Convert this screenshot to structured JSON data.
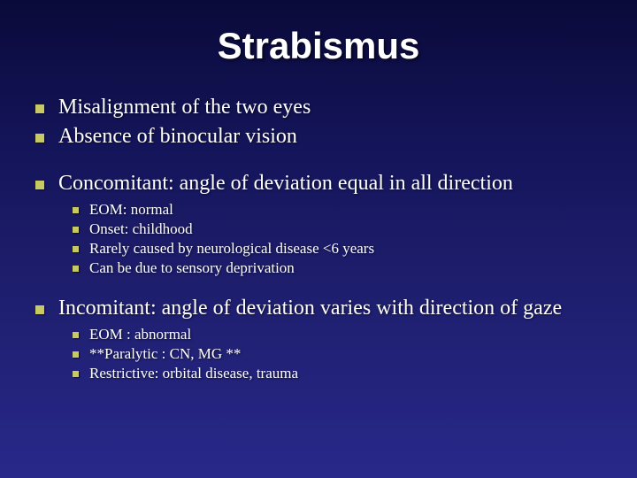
{
  "slide": {
    "title": "Strabismus",
    "title_fontsize": 42,
    "title_color": "#ffffff",
    "background_gradient": [
      "#0a0a3a",
      "#14145a",
      "#1e1e6e",
      "#28288a"
    ],
    "bullet_color": "#c8c864",
    "text_color": "#ffffff",
    "lvl1_fontsize": 24,
    "lvl2_fontsize": 17,
    "groups": [
      {
        "items": [
          {
            "text": "Misalignment of the two eyes"
          },
          {
            "text": "Absence of binocular vision"
          }
        ]
      },
      {
        "items": [
          {
            "text": "Concomitant: angle of deviation equal in all direction",
            "sub": [
              {
                "text": "EOM: normal"
              },
              {
                "text": "Onset: childhood"
              },
              {
                "text": "Rarely caused by neurological disease <6 years"
              },
              {
                "text": "Can be due to sensory deprivation"
              }
            ]
          }
        ]
      },
      {
        "items": [
          {
            "text": "Incomitant: angle of deviation varies with direction of gaze",
            "sub": [
              {
                "text": "EOM : abnormal"
              },
              {
                "text": "**Paralytic : CN, MG **"
              },
              {
                "text": "Restrictive: orbital disease, trauma"
              }
            ]
          }
        ]
      }
    ]
  }
}
